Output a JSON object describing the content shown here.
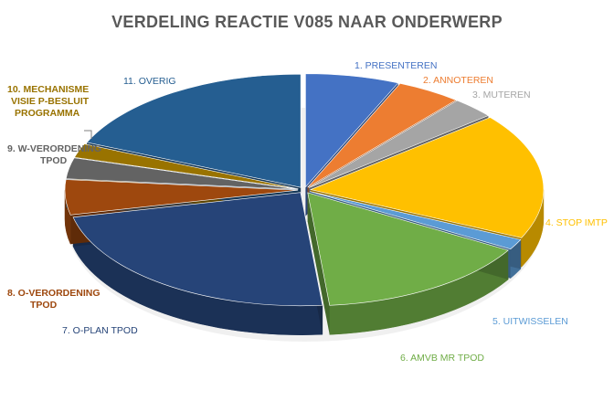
{
  "chart_data": {
    "type": "pie",
    "style": "3d-exploded-pie",
    "title": "VERDELING REACTIE V085 NAAR ONDERWERP",
    "legend": "none (labels outside slices)",
    "slices": [
      {
        "label": "1. PRESENTEREN",
        "value": 6.5,
        "color": "#4472C4",
        "label_color": "#4472C4"
      },
      {
        "label": "2. ANNOTEREN",
        "value": 4.5,
        "color": "#ED7D31",
        "label_color": "#ED7D31"
      },
      {
        "label": "3. MUTEREN",
        "value": 3.0,
        "color": "#A5A5A5",
        "label_color": "#A5A5A5"
      },
      {
        "label": "4. STOP IMTP",
        "value": 18.0,
        "color": "#FFC000",
        "label_color": "#FFC000"
      },
      {
        "label": "5. UITWISSELEN",
        "value": 1.5,
        "color": "#5B9BD5",
        "label_color": "#5B9BD5"
      },
      {
        "label": "6. AMVB MR TPOD",
        "value": 15.0,
        "color": "#70AD47",
        "label_color": "#70AD47"
      },
      {
        "label": "7. O-PLAN TPOD",
        "value": 23.0,
        "color": "#264478",
        "label_color": "#264478"
      },
      {
        "label": "8. O-VERORDENING TPOD",
        "value": 5.0,
        "color": "#9E480E",
        "label_color": "#9E480E"
      },
      {
        "label": "9. W-VERORDENING TPOD",
        "value": 3.0,
        "color": "#636363",
        "label_color": "#636363"
      },
      {
        "label": "10. MECHANISME VISIE P-BESLUIT PROGRAMMA",
        "value": 2.0,
        "color": "#997300",
        "label_color": "#997300"
      },
      {
        "label": "11. OVERIG",
        "value": 18.5,
        "color": "#255E91",
        "label_color": "#255E91"
      }
    ]
  }
}
